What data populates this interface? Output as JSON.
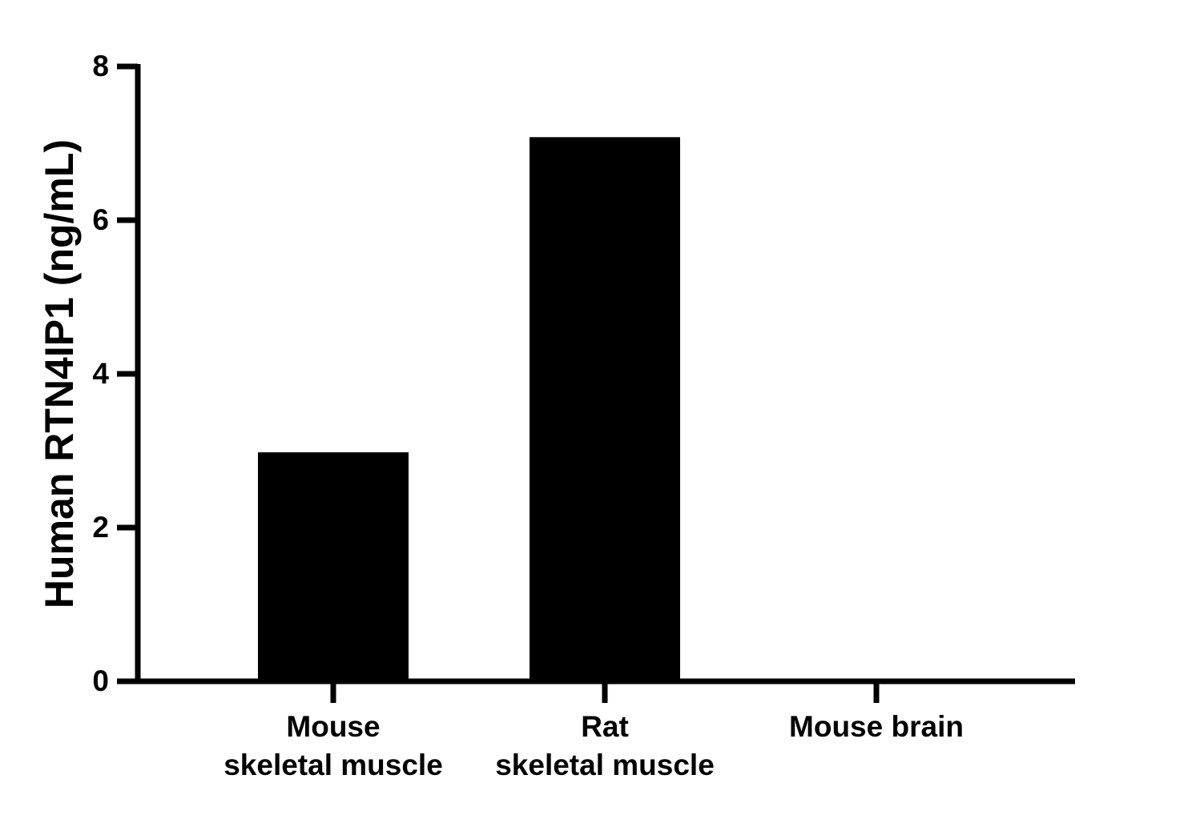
{
  "chart_data": {
    "type": "bar",
    "y_label": "Human RTN4IP1 (ng/mL)",
    "categories": [
      "Mouse\nskeletal muscle",
      "Rat\nskeletal muscle",
      "Mouse brain"
    ],
    "values": [
      2.98,
      7.08,
      0
    ],
    "color": "#000000",
    "ylim": [
      0,
      8
    ],
    "yticks": [
      0,
      2,
      4,
      6,
      8
    ],
    "grid": false
  }
}
